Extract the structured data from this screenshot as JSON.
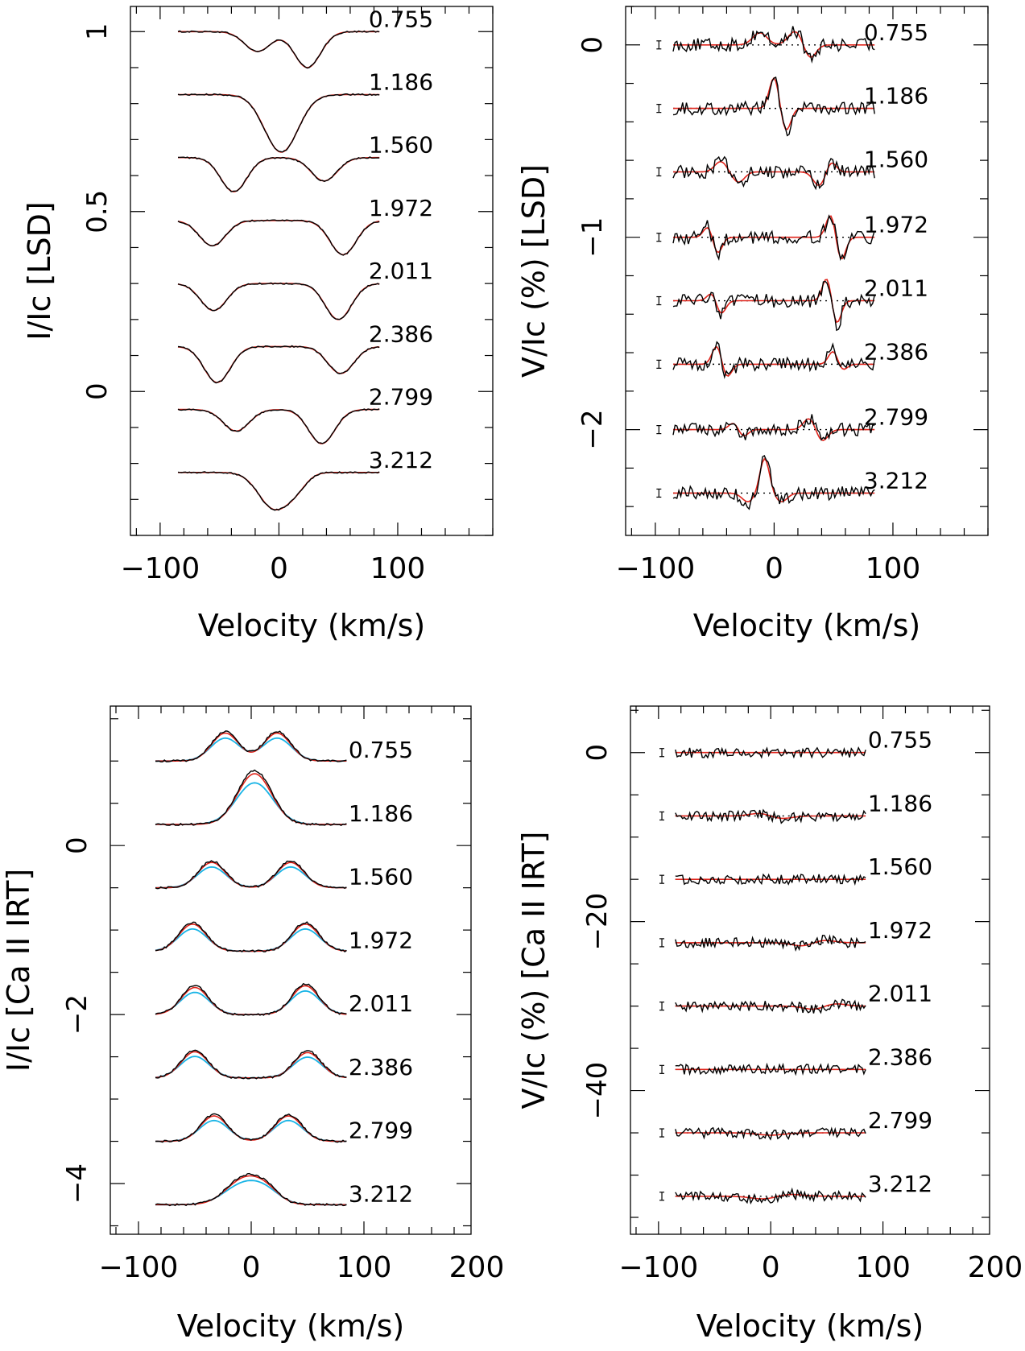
{
  "figure": {
    "phases": [
      "0.755",
      "1.186",
      "1.560",
      "1.972",
      "2.011",
      "2.386",
      "2.799",
      "3.212"
    ],
    "colors": {
      "observed": "#000000",
      "model": "#e0241b",
      "model_unconvolved": "#18b4e6",
      "zero_line": "#000000"
    }
  },
  "chart_data": [
    {
      "id": "lsd-stokes-i",
      "type": "line",
      "xlabel": "Velocity (km/s)",
      "ylabel": "I/Ic [LSD]",
      "xlim": [
        -125,
        180
      ],
      "ylim": [
        -0.4,
        1.07
      ],
      "xticks": [
        {
          "v": -100,
          "label": "−100"
        },
        {
          "v": 0,
          "label": "0"
        },
        {
          "v": 100,
          "label": "100"
        }
      ],
      "yticks": [
        {
          "v": 0,
          "label": "0"
        },
        {
          "v": 0.5,
          "label": "0.5"
        },
        {
          "v": 1,
          "label": "1"
        }
      ],
      "profile_kind": "absorption",
      "series": [
        {
          "phase": "0.755",
          "offset": 1.0,
          "components": [
            {
              "center": -18,
              "depth": 0.055,
              "width": 11
            },
            {
              "center": 24,
              "depth": 0.1,
              "width": 11
            }
          ]
        },
        {
          "phase": "1.186",
          "offset": 0.825,
          "components": [
            {
              "center": 2,
              "depth": 0.16,
              "width": 14
            }
          ]
        },
        {
          "phase": "1.560",
          "offset": 0.65,
          "components": [
            {
              "center": -38,
              "depth": 0.095,
              "width": 11
            },
            {
              "center": 38,
              "depth": 0.065,
              "width": 11
            }
          ]
        },
        {
          "phase": "1.972",
          "offset": 0.475,
          "components": [
            {
              "center": -56,
              "depth": 0.07,
              "width": 11
            },
            {
              "center": 54,
              "depth": 0.095,
              "width": 11
            }
          ]
        },
        {
          "phase": "2.011",
          "offset": 0.3,
          "components": [
            {
              "center": -55,
              "depth": 0.075,
              "width": 11
            },
            {
              "center": 50,
              "depth": 0.1,
              "width": 11
            }
          ]
        },
        {
          "phase": "2.386",
          "offset": 0.125,
          "components": [
            {
              "center": -52,
              "depth": 0.1,
              "width": 11
            },
            {
              "center": 52,
              "depth": 0.075,
              "width": 11
            }
          ]
        },
        {
          "phase": "2.799",
          "offset": -0.05,
          "components": [
            {
              "center": -36,
              "depth": 0.06,
              "width": 11
            },
            {
              "center": 36,
              "depth": 0.095,
              "width": 11
            }
          ]
        },
        {
          "phase": "3.212",
          "offset": -0.225,
          "components": [
            {
              "center": -4,
              "depth": 0.1,
              "width": 13
            },
            {
              "center": 15,
              "depth": 0.03,
              "width": 9
            }
          ]
        }
      ]
    },
    {
      "id": "lsd-stokes-v",
      "type": "line",
      "xlabel": "Velocity (km/s)",
      "ylabel": "V/Ic (%) [LSD]",
      "xlim": [
        -125,
        180
      ],
      "ylim": [
        -2.55,
        0.2
      ],
      "xticks": [
        {
          "v": -100,
          "label": "−100"
        },
        {
          "v": 0,
          "label": "0"
        },
        {
          "v": 100,
          "label": "100"
        }
      ],
      "yticks": [
        {
          "v": 0,
          "label": "0"
        },
        {
          "v": -1,
          "label": "−1"
        },
        {
          "v": -2,
          "label": "−2"
        }
      ],
      "noise": 0.035,
      "series": [
        {
          "phase": "0.755",
          "offset": 0.0,
          "features": [
            {
              "center": -12,
              "amp": 0.07,
              "width": 6
            },
            {
              "center": 18,
              "amp": 0.08,
              "width": 6
            },
            {
              "center": 30,
              "amp": -0.08,
              "width": 5
            }
          ]
        },
        {
          "phase": "1.186",
          "offset": -0.33,
          "features": [
            {
              "center": 0,
              "amp": 0.18,
              "width": 4
            },
            {
              "center": 10,
              "amp": -0.13,
              "width": 4
            }
          ]
        },
        {
          "phase": "1.560",
          "offset": -0.66,
          "features": [
            {
              "center": -45,
              "amp": 0.06,
              "width": 5
            },
            {
              "center": -30,
              "amp": -0.06,
              "width": 5
            },
            {
              "center": 38,
              "amp": -0.08,
              "width": 5
            },
            {
              "center": 48,
              "amp": 0.06,
              "width": 4
            }
          ]
        },
        {
          "phase": "1.972",
          "offset": -1.0,
          "features": [
            {
              "center": -55,
              "amp": 0.07,
              "width": 4
            },
            {
              "center": -48,
              "amp": -0.1,
              "width": 4
            },
            {
              "center": 48,
              "amp": 0.14,
              "width": 4
            },
            {
              "center": 56,
              "amp": -0.14,
              "width": 4
            }
          ]
        },
        {
          "phase": "2.011",
          "offset": -1.33,
          "features": [
            {
              "center": -52,
              "amp": 0.05,
              "width": 4
            },
            {
              "center": -45,
              "amp": -0.08,
              "width": 4
            },
            {
              "center": 45,
              "amp": 0.15,
              "width": 4
            },
            {
              "center": 52,
              "amp": -0.15,
              "width": 4
            }
          ]
        },
        {
          "phase": "2.386",
          "offset": -1.66,
          "features": [
            {
              "center": -48,
              "amp": 0.11,
              "width": 4
            },
            {
              "center": -40,
              "amp": -0.08,
              "width": 4
            },
            {
              "center": 50,
              "amp": 0.08,
              "width": 4
            },
            {
              "center": 57,
              "amp": -0.04,
              "width": 4
            }
          ]
        },
        {
          "phase": "2.799",
          "offset": -2.0,
          "features": [
            {
              "center": -34,
              "amp": 0.04,
              "width": 4
            },
            {
              "center": -26,
              "amp": -0.04,
              "width": 4
            },
            {
              "center": 30,
              "amp": 0.07,
              "width": 5
            },
            {
              "center": 40,
              "amp": -0.07,
              "width": 5
            }
          ]
        },
        {
          "phase": "3.212",
          "offset": -2.33,
          "features": [
            {
              "center": -22,
              "amp": -0.05,
              "width": 5
            },
            {
              "center": -8,
              "amp": 0.2,
              "width": 4
            },
            {
              "center": 6,
              "amp": -0.05,
              "width": 5
            }
          ]
        }
      ]
    },
    {
      "id": "ca-irt-stokes-i",
      "type": "line",
      "xlabel": "Velocity (km/s)",
      "ylabel": "I/Ic [Ca II IRT]",
      "xlim": [
        -125,
        195
      ],
      "ylim": [
        -4.6,
        1.65
      ],
      "xticks": [
        {
          "v": -100,
          "label": "−100"
        },
        {
          "v": 0,
          "label": "0"
        },
        {
          "v": 100,
          "label": "100"
        },
        {
          "v": 200,
          "label": "200"
        }
      ],
      "yticks": [
        {
          "v": 0,
          "label": "0"
        },
        {
          "v": -2,
          "label": "−2"
        },
        {
          "v": -4,
          "label": "−4"
        }
      ],
      "profile_kind": "emission",
      "series": [
        {
          "phase": "0.755",
          "offset": 1.0,
          "components": [
            {
              "center": -23,
              "height": 0.33,
              "width": 12
            },
            {
              "center": 23,
              "height": 0.33,
              "width": 12
            }
          ]
        },
        {
          "phase": "1.186",
          "offset": 0.25,
          "components": [
            {
              "center": 3,
              "height": 0.6,
              "width": 15
            }
          ]
        },
        {
          "phase": "1.560",
          "offset": -0.5,
          "components": [
            {
              "center": -35,
              "height": 0.3,
              "width": 12
            },
            {
              "center": 35,
              "height": 0.3,
              "width": 12
            }
          ]
        },
        {
          "phase": "1.972",
          "offset": -1.25,
          "components": [
            {
              "center": -52,
              "height": 0.32,
              "width": 12
            },
            {
              "center": 48,
              "height": 0.32,
              "width": 12
            }
          ]
        },
        {
          "phase": "2.011",
          "offset": -2.0,
          "components": [
            {
              "center": -50,
              "height": 0.32,
              "width": 12
            },
            {
              "center": 48,
              "height": 0.34,
              "width": 12
            }
          ]
        },
        {
          "phase": "2.386",
          "offset": -2.75,
          "components": [
            {
              "center": -50,
              "height": 0.31,
              "width": 12
            },
            {
              "center": 50,
              "height": 0.3,
              "width": 12
            }
          ]
        },
        {
          "phase": "2.799",
          "offset": -3.5,
          "components": [
            {
              "center": -33,
              "height": 0.3,
              "width": 12
            },
            {
              "center": 33,
              "height": 0.3,
              "width": 12
            }
          ]
        },
        {
          "phase": "3.212",
          "offset": -4.25,
          "components": [
            {
              "center": -6,
              "height": 0.3,
              "width": 16
            },
            {
              "center": 14,
              "height": 0.12,
              "width": 12
            }
          ]
        }
      ]
    },
    {
      "id": "ca-irt-stokes-v",
      "type": "line",
      "xlabel": "Velocity (km/s)",
      "ylabel": "V/Ic (%) [Ca II IRT]",
      "xlim": [
        -125,
        195
      ],
      "ylim": [
        -57,
        5.5
      ],
      "xticks": [
        {
          "v": -100,
          "label": "−100"
        },
        {
          "v": 0,
          "label": "0"
        },
        {
          "v": 100,
          "label": "100"
        },
        {
          "v": 200,
          "label": "200"
        }
      ],
      "yticks": [
        {
          "v": 0,
          "label": "0"
        },
        {
          "v": -20,
          "label": "−20"
        },
        {
          "v": -40,
          "label": "−40"
        }
      ],
      "noise": 0.6,
      "series": [
        {
          "phase": "0.755",
          "offset": 0.0,
          "features": []
        },
        {
          "phase": "1.186",
          "offset": -7.5,
          "features": [
            {
              "center": -8,
              "amp": 0.4,
              "width": 10
            },
            {
              "center": 8,
              "amp": -0.4,
              "width": 10
            }
          ]
        },
        {
          "phase": "1.560",
          "offset": -15.0,
          "features": []
        },
        {
          "phase": "1.972",
          "offset": -22.5,
          "features": [
            {
              "center": 30,
              "amp": -0.5,
              "width": 10
            },
            {
              "center": 45,
              "amp": 0.4,
              "width": 10
            }
          ]
        },
        {
          "phase": "2.011",
          "offset": -30.0,
          "features": [
            {
              "center": 40,
              "amp": -0.5,
              "width": 10
            },
            {
              "center": 55,
              "amp": 0.4,
              "width": 10
            }
          ]
        },
        {
          "phase": "2.386",
          "offset": -37.5,
          "features": []
        },
        {
          "phase": "2.799",
          "offset": -45.0,
          "features": [
            {
              "center": 0,
              "amp": -0.3,
              "width": 12
            }
          ]
        },
        {
          "phase": "3.212",
          "offset": -52.5,
          "features": [
            {
              "center": -5,
              "amp": -0.4,
              "width": 12
            },
            {
              "center": 15,
              "amp": 0.3,
              "width": 12
            }
          ]
        }
      ]
    }
  ]
}
